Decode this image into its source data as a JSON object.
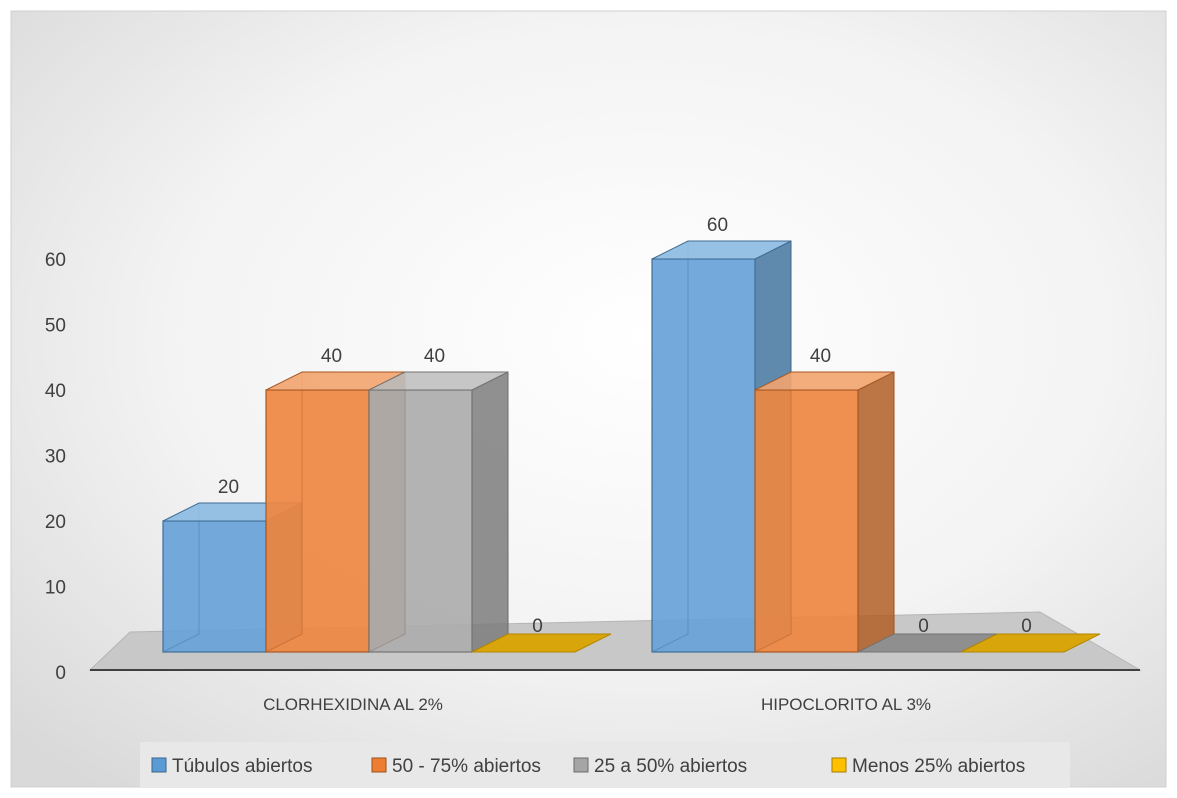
{
  "chart_data": {
    "type": "bar",
    "variant": "3d-clustered",
    "categories": [
      "CLORHEXIDINA AL 2%",
      "HIPOCLORITO AL 3%"
    ],
    "series": [
      {
        "name": "Túbulos abiertos",
        "values": [
          20,
          60
        ],
        "color": "#5B9BD5"
      },
      {
        "name": "50 - 75% abiertos",
        "values": [
          40,
          40
        ],
        "color": "#ED7D31"
      },
      {
        "name": "25 a 50% abiertos",
        "values": [
          40,
          0
        ],
        "color": "#A5A5A5"
      },
      {
        "name": "Menos 25% abiertos",
        "values": [
          0,
          0
        ],
        "color": "#FFC000"
      }
    ],
    "data_labels": [
      [
        "20",
        "60"
      ],
      [
        "40",
        "40"
      ],
      [
        "40",
        "0"
      ],
      [
        "0",
        "0"
      ]
    ],
    "ylim": [
      0,
      60
    ],
    "yticks": [
      0,
      10,
      20,
      30,
      40,
      50,
      60
    ],
    "legend_position": "bottom",
    "grid": false
  }
}
